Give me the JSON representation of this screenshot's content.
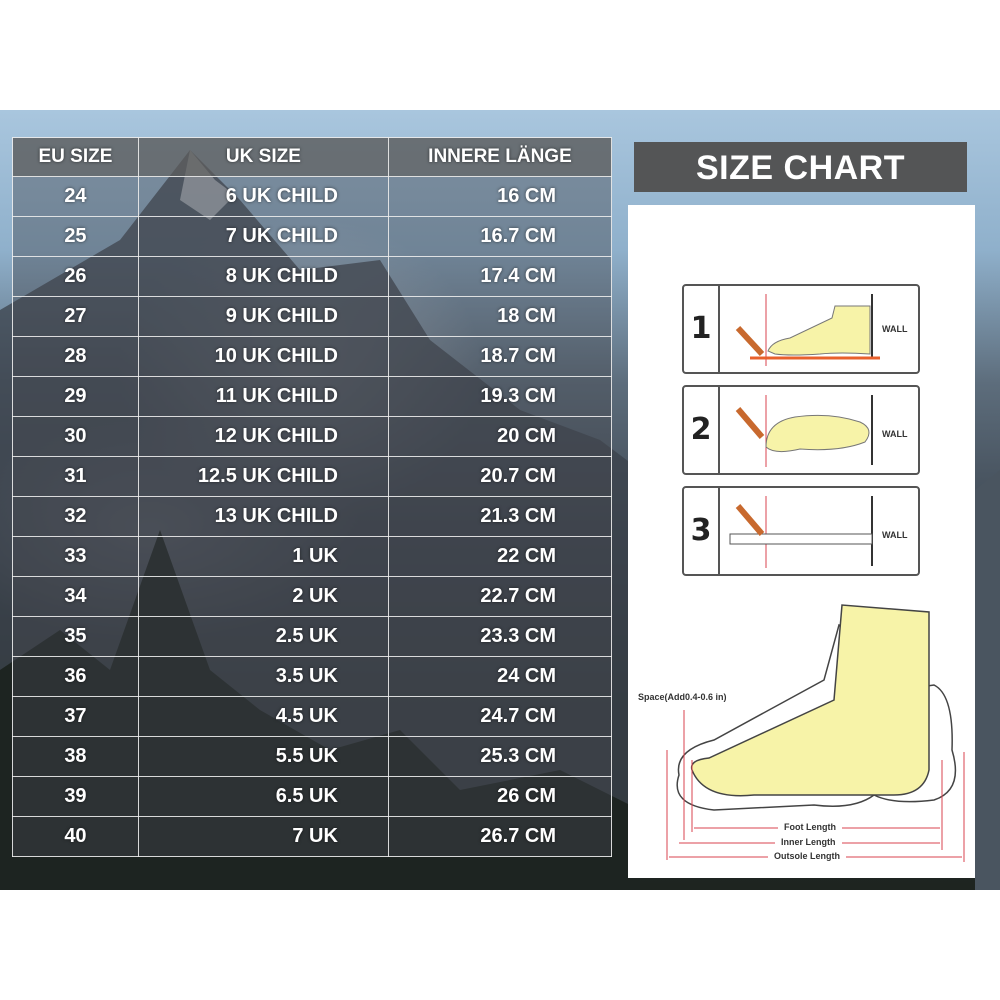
{
  "table": {
    "headers": [
      "EU SIZE",
      "UK SIZE",
      "INNERE LÄNGE"
    ],
    "rows": [
      [
        "24",
        "6 UK CHILD",
        "16 CM"
      ],
      [
        "25",
        "7 UK CHILD",
        "16.7 CM"
      ],
      [
        "26",
        "8 UK CHILD",
        "17.4 CM"
      ],
      [
        "27",
        "9 UK CHILD",
        "18 CM"
      ],
      [
        "28",
        "10 UK CHILD",
        "18.7 CM"
      ],
      [
        "29",
        "11 UK CHILD",
        "19.3 CM"
      ],
      [
        "30",
        "12 UK CHILD",
        "20 CM"
      ],
      [
        "31",
        "12.5 UK CHILD",
        "20.7 CM"
      ],
      [
        "32",
        "13 UK CHILD",
        "21.3 CM"
      ],
      [
        "33",
        "1 UK",
        "22 CM"
      ],
      [
        "34",
        "2 UK",
        "22.7 CM"
      ],
      [
        "35",
        "2.5 UK",
        "23.3 CM"
      ],
      [
        "36",
        "3.5 UK",
        "24 CM"
      ],
      [
        "37",
        "4.5 UK",
        "24.7 CM"
      ],
      [
        "38",
        "5.5 UK",
        "25.3 CM"
      ],
      [
        "39",
        "6.5 UK",
        "26 CM"
      ],
      [
        "40",
        "7 UK",
        "26.7 CM"
      ]
    ]
  },
  "panel": {
    "title": "SIZE CHART",
    "steps": [
      {
        "number": "1",
        "wall": "WALL"
      },
      {
        "number": "2",
        "wall": "WALL"
      },
      {
        "number": "3",
        "wall": "WALL"
      }
    ],
    "diagram": {
      "space_label": "Space(Add0.4-0.6 in)",
      "foot_length": "Foot Length",
      "inner_length": "Inner Length",
      "outsole_length": "Outsole Length"
    },
    "colors": {
      "foot": "#f7f3a8",
      "guide": "#d9434f",
      "pencil": "#c8692e",
      "title_bg": "#545556"
    }
  }
}
